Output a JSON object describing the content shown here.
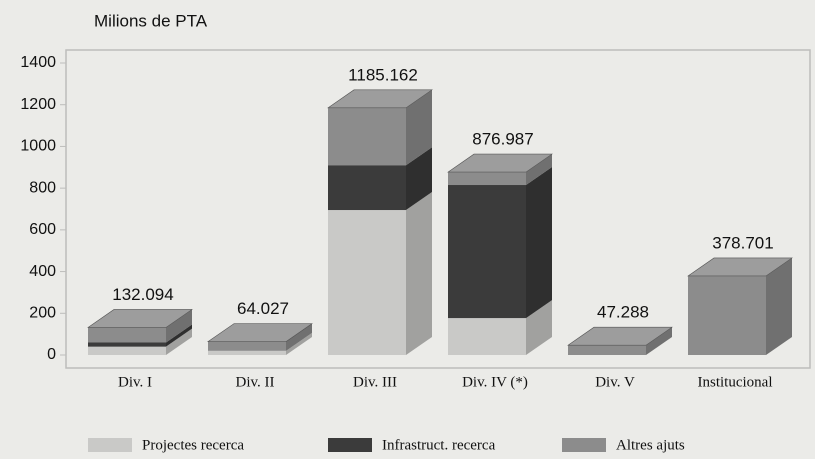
{
  "chart_data": {
    "type": "bar3d_stacked",
    "y_label": "Milions de PTA",
    "categories": [
      "Div. I",
      "Div. II",
      "Div. III",
      "Div. IV (*)",
      "Div. V",
      "Institucional"
    ],
    "series": [
      {
        "name": "Projectes recerca",
        "color": "#c9c9c7",
        "values": [
          40,
          20,
          695,
          177,
          0,
          0
        ]
      },
      {
        "name": "Infrastruct. recerca",
        "color": "#3b3b3b",
        "values": [
          20,
          0,
          215,
          638,
          0,
          0
        ]
      },
      {
        "name": "Altres ajuts",
        "color": "#8c8c8c",
        "values": [
          72,
          44,
          275,
          62,
          47,
          379
        ]
      }
    ],
    "totals": [
      132.094,
      64.027,
      1185.162,
      876.987,
      47.288,
      378.701
    ],
    "ylim": [
      0,
      1400
    ],
    "yticks": [
      0,
      200,
      400,
      600,
      800,
      1000,
      1200,
      1400
    ]
  }
}
